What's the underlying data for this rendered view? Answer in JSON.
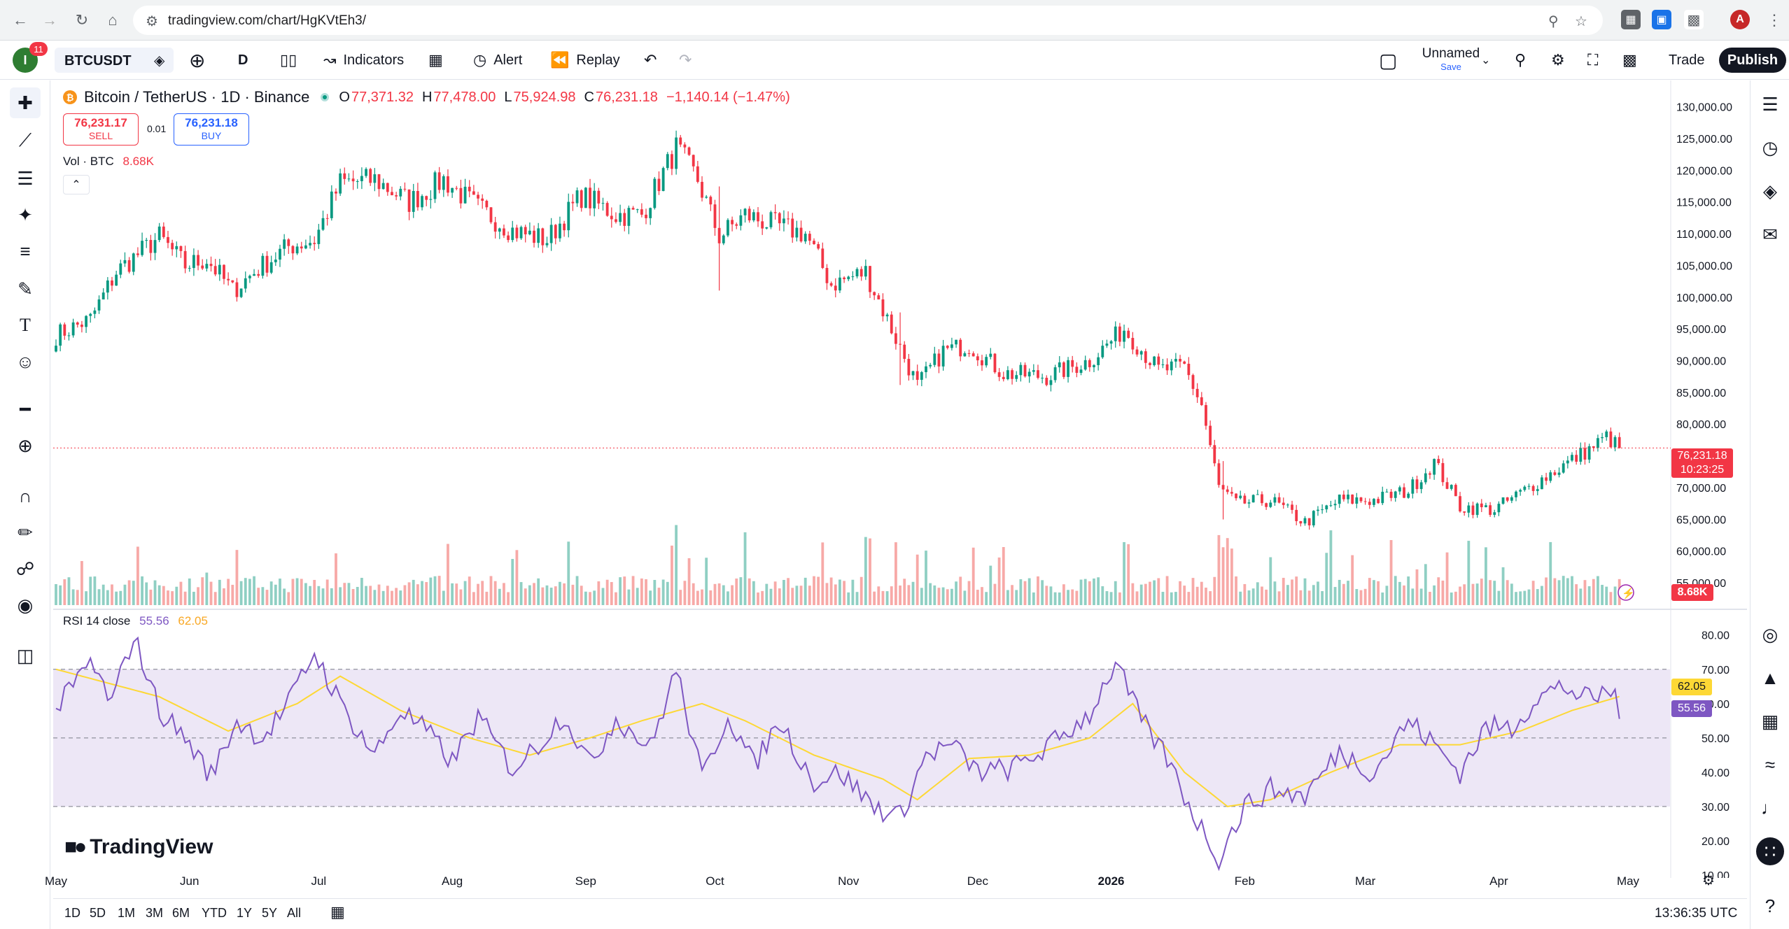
{
  "browser": {
    "url": "tradingview.com/chart/HgKVtEh3/",
    "profile_initial": "A"
  },
  "toolbar": {
    "notifications": "11",
    "avatar_initial": "I",
    "symbol": "BTCUSDT",
    "interval": "D",
    "indicators_label": "Indicators",
    "alert_label": "Alert",
    "replay_label": "Replay",
    "layout_name": "Unnamed",
    "layout_save": "Save",
    "trade_label": "Trade",
    "publish_label": "Publish"
  },
  "legend": {
    "title": "Bitcoin / TetherUS · 1D · Binance",
    "open_label": "O",
    "open": "77,371.32",
    "high_label": "H",
    "high": "77,478.00",
    "low_label": "L",
    "low": "75,924.98",
    "close_label": "C",
    "close": "76,231.18",
    "change": "−1,140.14 (−1.47%)"
  },
  "trade_boxes": {
    "sell_price": "76,231.17",
    "sell_label": "SELL",
    "buy_price": "76,231.18",
    "buy_label": "BUY",
    "spread": "0.01"
  },
  "volume": {
    "label": "Vol · BTC",
    "value": "8.68K"
  },
  "rsi": {
    "label": "RSI 14 close",
    "value": "55.56",
    "ma_value": "62.05"
  },
  "price_tag": {
    "price": "76,231.18",
    "countdown": "10:23:25"
  },
  "brand": "TradingView",
  "ranges": [
    "1D",
    "5D",
    "1M",
    "3M",
    "6M",
    "YTD",
    "1Y",
    "5Y",
    "All"
  ],
  "time": "13:36:35 UTC",
  "colors": {
    "up": "#089981",
    "down": "#f23645",
    "vol_up": "#8fcfc3",
    "vol_down": "#f7a9a7",
    "rsi_line": "#7e57c2",
    "rsi_ma": "#fdd835",
    "rsi_band": "#ede7f6"
  },
  "chart_data": {
    "type": "candlestick",
    "price_axis_ticks": [
      "130,000.00",
      "125,000.00",
      "120,000.00",
      "115,000.00",
      "110,000.00",
      "105,000.00",
      "100,000.00",
      "95,000.00",
      "90,000.00",
      "85,000.00",
      "80,000.00",
      "75,000.00",
      "70,000.00",
      "65,000.00",
      "60,000.00",
      "55,000.00"
    ],
    "price_range": [
      55000,
      131500
    ],
    "rsi_axis_ticks": [
      "80.00",
      "70.00",
      "60.00",
      "50.00",
      "40.00",
      "30.00",
      "20.00",
      "10.00"
    ],
    "rsi_range": [
      10,
      83
    ],
    "rsi_band": [
      30,
      70
    ],
    "x_labels": [
      "May",
      "Jun",
      "Jul",
      "Aug",
      "Sep",
      "Oct",
      "Nov",
      "Dec",
      "2026",
      "Feb",
      "Mar",
      "Apr",
      "May"
    ],
    "x_label_index": [
      0,
      31,
      61,
      92,
      123,
      153,
      184,
      214,
      245,
      276,
      304,
      335,
      365
    ],
    "close_keypoints": [
      [
        0,
        94000
      ],
      [
        8,
        96500
      ],
      [
        14,
        104000
      ],
      [
        24,
        109500
      ],
      [
        30,
        105000
      ],
      [
        35,
        106000
      ],
      [
        41,
        101000
      ],
      [
        47,
        104500
      ],
      [
        54,
        108000
      ],
      [
        60,
        109000
      ],
      [
        66,
        118000
      ],
      [
        74,
        118500
      ],
      [
        82,
        115000
      ],
      [
        90,
        118500
      ],
      [
        98,
        114000
      ],
      [
        106,
        110500
      ],
      [
        114,
        109000
      ],
      [
        122,
        116000
      ],
      [
        130,
        113000
      ],
      [
        136,
        113000
      ],
      [
        144,
        123500
      ],
      [
        149,
        118500
      ],
      [
        154,
        109500
      ],
      [
        160,
        113000
      ],
      [
        166,
        111500
      ],
      [
        174,
        110000
      ],
      [
        180,
        102000
      ],
      [
        188,
        104000
      ],
      [
        194,
        95000
      ],
      [
        200,
        86000
      ],
      [
        206,
        91500
      ],
      [
        212,
        92500
      ],
      [
        220,
        88000
      ],
      [
        230,
        87500
      ],
      [
        240,
        90000
      ],
      [
        248,
        95000
      ],
      [
        256,
        88500
      ],
      [
        262,
        89000
      ],
      [
        266,
        83000
      ],
      [
        270,
        70000
      ],
      [
        274,
        67500
      ],
      [
        282,
        68000
      ],
      [
        290,
        64500
      ],
      [
        298,
        68000
      ],
      [
        306,
        68000
      ],
      [
        314,
        69500
      ],
      [
        320,
        74000
      ],
      [
        326,
        67000
      ],
      [
        334,
        66500
      ],
      [
        342,
        70000
      ],
      [
        350,
        73500
      ],
      [
        356,
        76000
      ],
      [
        360,
        78000
      ],
      [
        363,
        76231
      ]
    ],
    "rsi_keypoints": [
      [
        0,
        58
      ],
      [
        8,
        72
      ],
      [
        13,
        60
      ],
      [
        18,
        80
      ],
      [
        24,
        58
      ],
      [
        30,
        50
      ],
      [
        36,
        39
      ],
      [
        42,
        55
      ],
      [
        48,
        50
      ],
      [
        54,
        60
      ],
      [
        60,
        75
      ],
      [
        66,
        60
      ],
      [
        74,
        45
      ],
      [
        80,
        58
      ],
      [
        86,
        52
      ],
      [
        92,
        43
      ],
      [
        98,
        56
      ],
      [
        106,
        41
      ],
      [
        112,
        48
      ],
      [
        118,
        57
      ],
      [
        124,
        42
      ],
      [
        130,
        56
      ],
      [
        138,
        47
      ],
      [
        144,
        70
      ],
      [
        150,
        38
      ],
      [
        156,
        57
      ],
      [
        162,
        42
      ],
      [
        168,
        55
      ],
      [
        176,
        37
      ],
      [
        182,
        40
      ],
      [
        190,
        30
      ],
      [
        196,
        27
      ],
      [
        202,
        45
      ],
      [
        208,
        48
      ],
      [
        214,
        40
      ],
      [
        222,
        41
      ],
      [
        230,
        47
      ],
      [
        240,
        57
      ],
      [
        246,
        72
      ],
      [
        252,
        55
      ],
      [
        258,
        44
      ],
      [
        264,
        28
      ],
      [
        270,
        15
      ],
      [
        276,
        30
      ],
      [
        282,
        35
      ],
      [
        290,
        33
      ],
      [
        298,
        46
      ],
      [
        306,
        40
      ],
      [
        314,
        55
      ],
      [
        320,
        48
      ],
      [
        326,
        40
      ],
      [
        332,
        53
      ],
      [
        338,
        53
      ],
      [
        344,
        62
      ],
      [
        350,
        65
      ],
      [
        356,
        61
      ],
      [
        362,
        64
      ],
      [
        363,
        55.56
      ]
    ],
    "rsi_ma_keypoints": [
      [
        0,
        70
      ],
      [
        12,
        66
      ],
      [
        24,
        62
      ],
      [
        40,
        52
      ],
      [
        56,
        60
      ],
      [
        66,
        68
      ],
      [
        80,
        58
      ],
      [
        96,
        50
      ],
      [
        110,
        45
      ],
      [
        124,
        50
      ],
      [
        136,
        55
      ],
      [
        150,
        60
      ],
      [
        160,
        55
      ],
      [
        176,
        45
      ],
      [
        192,
        38
      ],
      [
        200,
        32
      ],
      [
        212,
        44
      ],
      [
        226,
        45
      ],
      [
        240,
        50
      ],
      [
        250,
        60
      ],
      [
        262,
        40
      ],
      [
        272,
        30
      ],
      [
        282,
        32
      ],
      [
        296,
        40
      ],
      [
        312,
        48
      ],
      [
        326,
        48
      ],
      [
        340,
        52
      ],
      [
        352,
        58
      ],
      [
        363,
        62.05
      ]
    ],
    "last_price": 76231.18
  }
}
